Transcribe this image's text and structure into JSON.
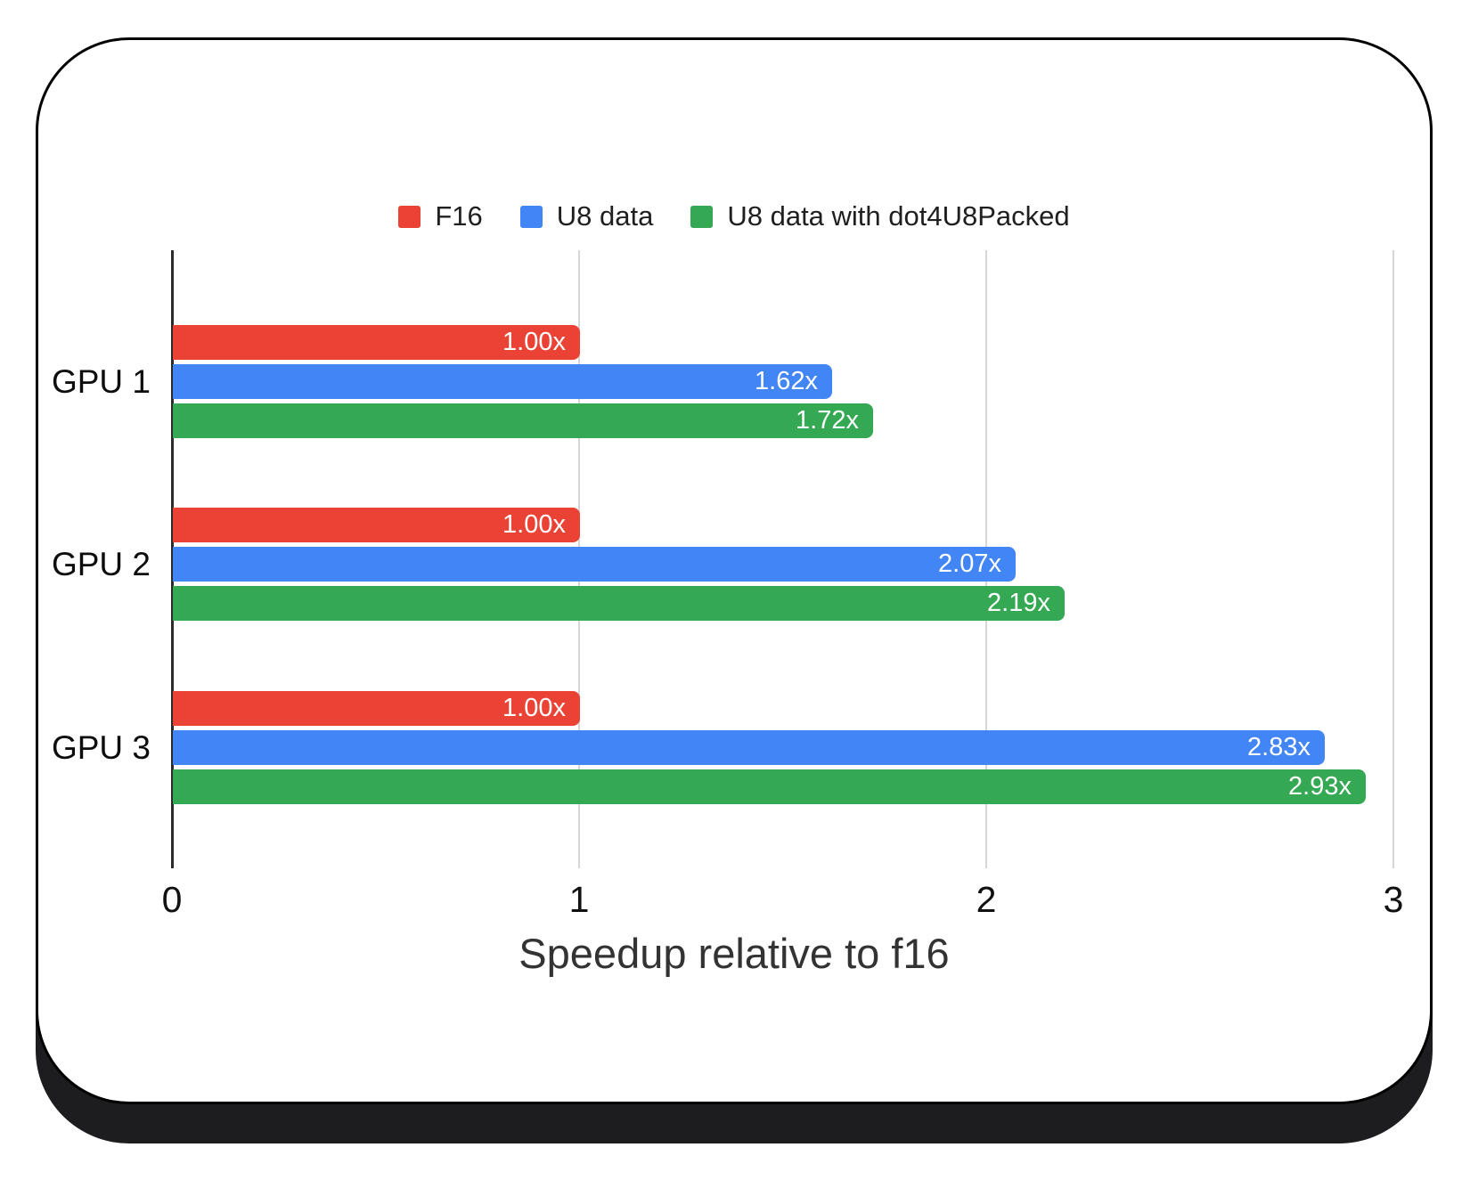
{
  "chart_data": {
    "type": "bar",
    "orientation": "horizontal",
    "categories": [
      "GPU 1",
      "GPU 2",
      "GPU 3"
    ],
    "series": [
      {
        "name": "F16",
        "color": "#EA4335",
        "values": [
          1.0,
          1.0,
          1.0
        ],
        "labels": [
          "1.00x",
          "1.00x",
          "1.00x"
        ]
      },
      {
        "name": "U8 data",
        "color": "#4285F4",
        "values": [
          1.62,
          2.07,
          2.83
        ],
        "labels": [
          "1.62x",
          "2.07x",
          "2.83x"
        ]
      },
      {
        "name": "U8 data with dot4U8Packed",
        "color": "#34A853",
        "values": [
          1.72,
          2.19,
          2.93
        ],
        "labels": [
          "1.72x",
          "2.19x",
          "2.93x"
        ]
      }
    ],
    "xlabel": "Speedup relative to f16",
    "x_ticks": [
      "0",
      "1",
      "2",
      "3"
    ],
    "xlim": [
      0,
      3
    ],
    "grid": true,
    "legend_position": "top",
    "bar_label_color": "#ffffff",
    "value_suffix": "x"
  }
}
